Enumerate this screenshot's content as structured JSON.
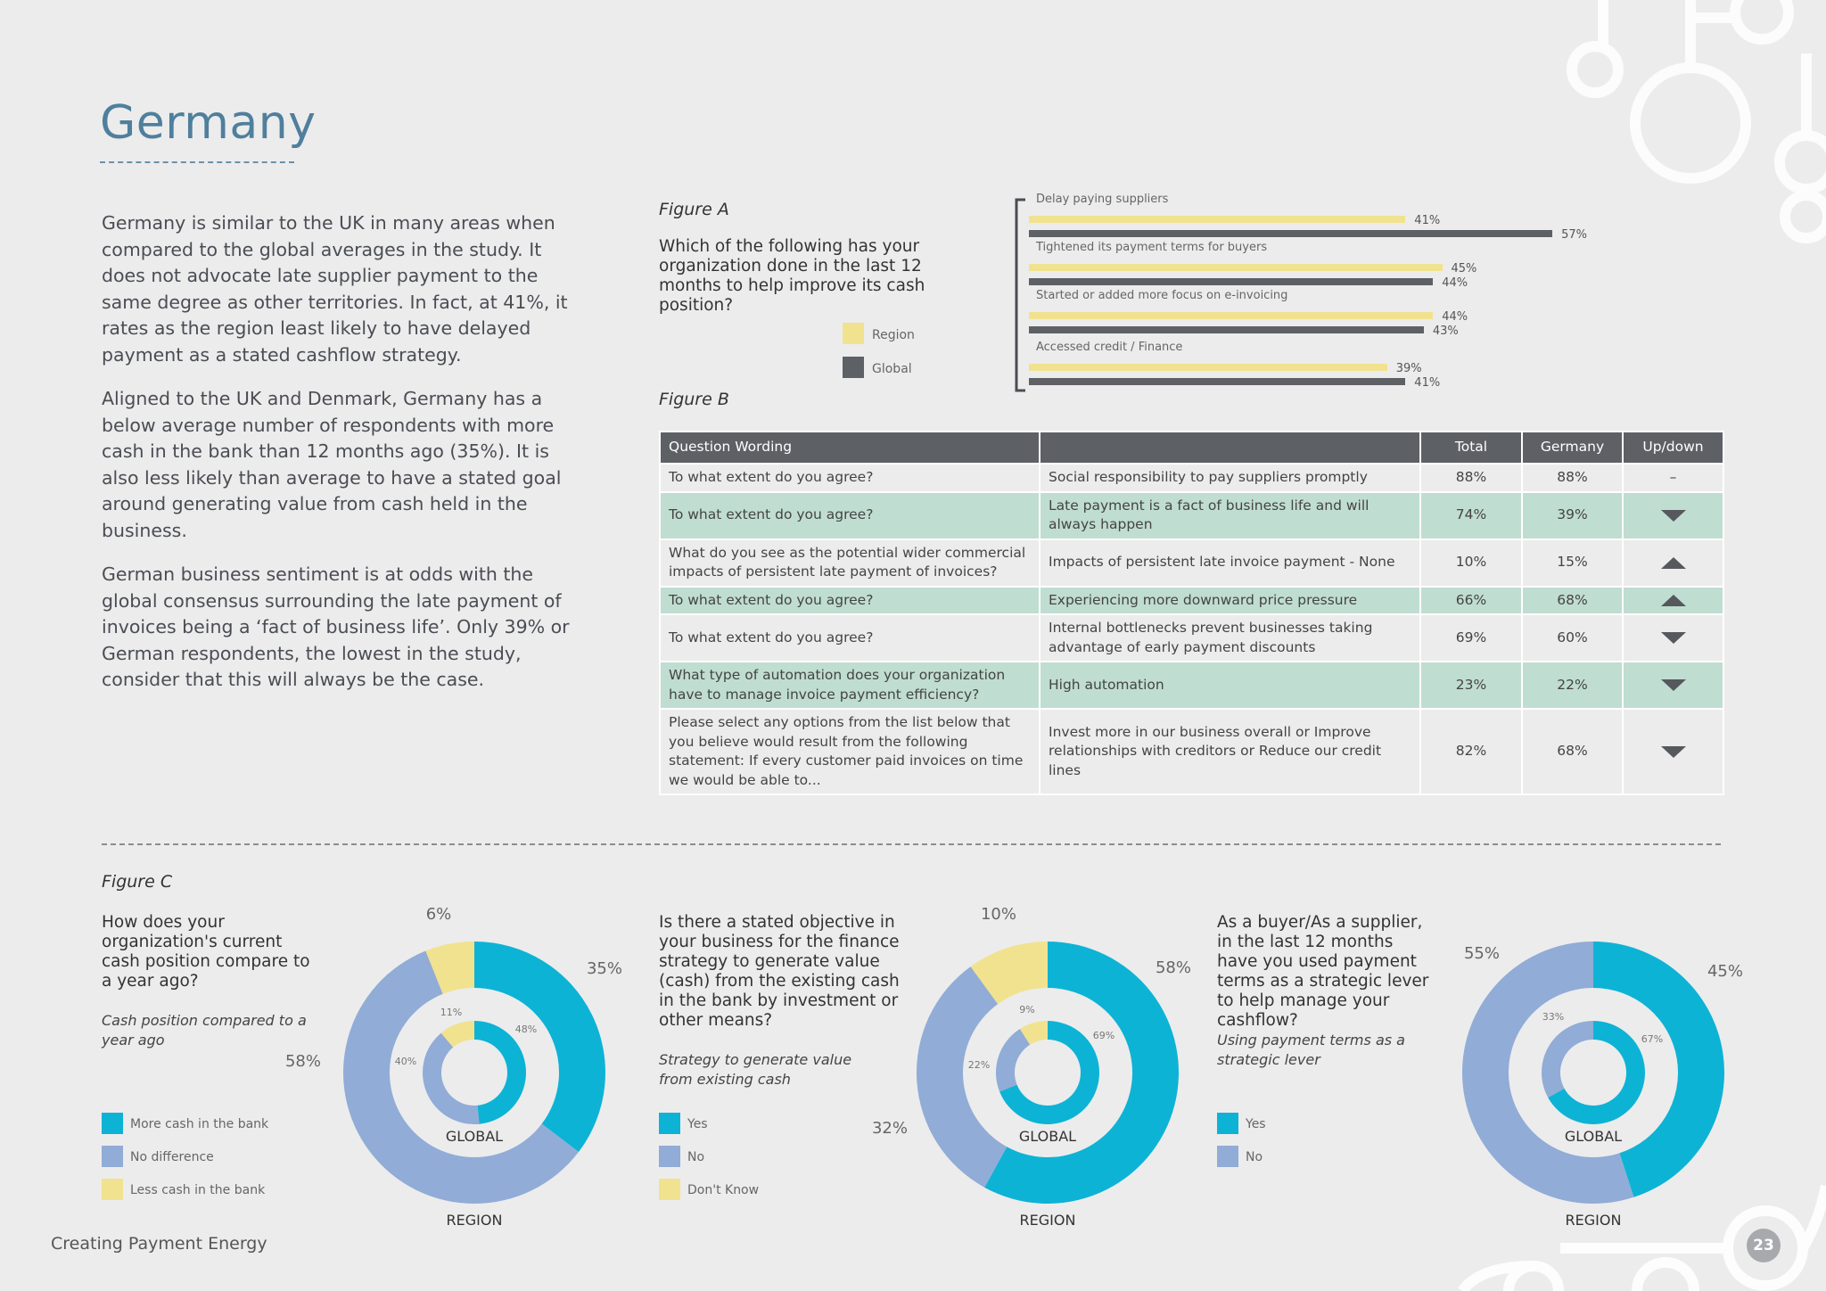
{
  "page": {
    "title": "Germany",
    "paragraphs": [
      "Germany is similar to the UK in many areas when compared to the global averages in the study. It does not advocate late supplier payment to the same degree as other territories. In fact, at 41%, it rates as the region least likely to have delayed payment as a stated cashflow strategy.",
      "Aligned to the UK and Denmark, Germany has a below average number of respondents with more cash in the bank than 12 months ago (35%). It is also less likely than average to have a stated goal around generating value from cash held in the business.",
      "German business sentiment is at odds with the global consensus surrounding the late payment of invoices being a ‘fact of business life’. Only 39% or German respondents, the lowest in the study, consider that this will always be the case."
    ],
    "footer": "Creating Payment Energy",
    "page_number": "23"
  },
  "figure_a": {
    "label": "Figure A",
    "question": "Which of the following has your organization done in the last 12 months to help improve its cash position?",
    "legend": [
      {
        "name": "Region",
        "color": "#f1e28f"
      },
      {
        "name": "Global",
        "color": "#5d6065"
      }
    ]
  },
  "chart_data": [
    {
      "type": "bar",
      "orientation": "horizontal",
      "categories": [
        "Delay paying suppliers",
        "Tightened its payment terms for buyers",
        "Started or added more focus on e-invoicing",
        "Accessed credit / Finance"
      ],
      "series": [
        {
          "name": "Region",
          "values": [
            41,
            45,
            44,
            39
          ],
          "labels": [
            "41%",
            "45%",
            "44%",
            "39%"
          ],
          "color": "#f1e28f"
        },
        {
          "name": "Global",
          "values": [
            57,
            44,
            43,
            41
          ],
          "labels": [
            "57%",
            "44%",
            "43%",
            "41%"
          ],
          "color": "#5d6065"
        }
      ],
      "unit": "%",
      "xlim": [
        0,
        100
      ],
      "legend": "left"
    },
    {
      "type": "pie",
      "variant": "donut-nested",
      "question": "How does your organization's current cash position compare to a year ago?",
      "subtitle": "Cash position compared to a year ago",
      "categories": [
        "More cash in the bank",
        "No difference",
        "Less cash in the bank"
      ],
      "colors": [
        "#0db3d5",
        "#91acd6",
        "#f1e28f"
      ],
      "series": [
        {
          "name": "REGION",
          "values": [
            35,
            58,
            6
          ],
          "labels": [
            "35%",
            "58%",
            "6%"
          ]
        },
        {
          "name": "GLOBAL",
          "values": [
            48,
            40,
            11
          ],
          "labels": [
            "48%",
            "40%",
            "11%"
          ]
        }
      ]
    },
    {
      "type": "pie",
      "variant": "donut-nested",
      "question": "Is there a stated objective in your business for the finance strategy to generate value (cash) from the existing cash in the bank by investment or other means?",
      "subtitle": "Strategy to generate value from existing cash",
      "categories": [
        "Yes",
        "No",
        "Don't Know"
      ],
      "colors": [
        "#0db3d5",
        "#91acd6",
        "#f1e28f"
      ],
      "series": [
        {
          "name": "REGION",
          "values": [
            58,
            32,
            10
          ],
          "labels": [
            "58%",
            "32%",
            "10%"
          ]
        },
        {
          "name": "GLOBAL",
          "values": [
            69,
            22,
            9
          ],
          "labels": [
            "69%",
            "22%",
            "9%"
          ]
        }
      ]
    },
    {
      "type": "pie",
      "variant": "donut-nested",
      "question": "As a buyer/As a supplier, in the last 12 months have you used payment terms as a strategic lever to help manage your cashflow?",
      "subtitle": "Using payment terms as a strategic lever",
      "categories": [
        "Yes",
        "No"
      ],
      "colors": [
        "#0db3d5",
        "#91acd6"
      ],
      "series": [
        {
          "name": "REGION",
          "values": [
            45,
            55
          ],
          "labels": [
            "45%",
            "55%"
          ]
        },
        {
          "name": "GLOBAL",
          "values": [
            67,
            33
          ],
          "labels": [
            "67%",
            "33%"
          ]
        }
      ]
    }
  ],
  "figure_b": {
    "label": "Figure B",
    "headers": [
      "Question Wording",
      "",
      "Total",
      "Germany",
      "Up/down"
    ],
    "rows": [
      {
        "question": "To what extent do you agree?",
        "statement": "Social responsibility to pay suppliers promptly",
        "total": "88%",
        "germany": "88%",
        "trend": "–",
        "highlight": false
      },
      {
        "question": "To what extent do you agree?",
        "statement": "Late payment is a fact of business life and will always happen",
        "total": "74%",
        "germany": "39%",
        "trend": "down",
        "highlight": true
      },
      {
        "question": "What do you see as the potential wider commercial impacts of persistent late payment of invoices?",
        "statement": "Impacts of persistent late invoice payment - None",
        "total": "10%",
        "germany": "15%",
        "trend": "up",
        "highlight": false
      },
      {
        "question": "To what extent do you agree?",
        "statement": "Experiencing more downward price pressure",
        "total": "66%",
        "germany": "68%",
        "trend": "up",
        "highlight": true
      },
      {
        "question": "To what extent do you agree?",
        "statement": "Internal bottlenecks prevent businesses taking advantage of early payment discounts",
        "total": "69%",
        "germany": "60%",
        "trend": "down",
        "highlight": false
      },
      {
        "question": "What type of automation does your organization have to manage invoice payment efficiency?",
        "statement": "High automation",
        "total": "23%",
        "germany": "22%",
        "trend": "down",
        "highlight": true
      },
      {
        "question": "Please select any options from the list below that you believe would result from the following statement: If every customer paid invoices on time we would be able to...",
        "statement": "Invest more in our business overall or Improve relationships with creditors or Reduce our credit lines",
        "total": "82%",
        "germany": "68%",
        "trend": "down",
        "highlight": false
      }
    ]
  },
  "figure_c": {
    "label": "Figure C"
  }
}
